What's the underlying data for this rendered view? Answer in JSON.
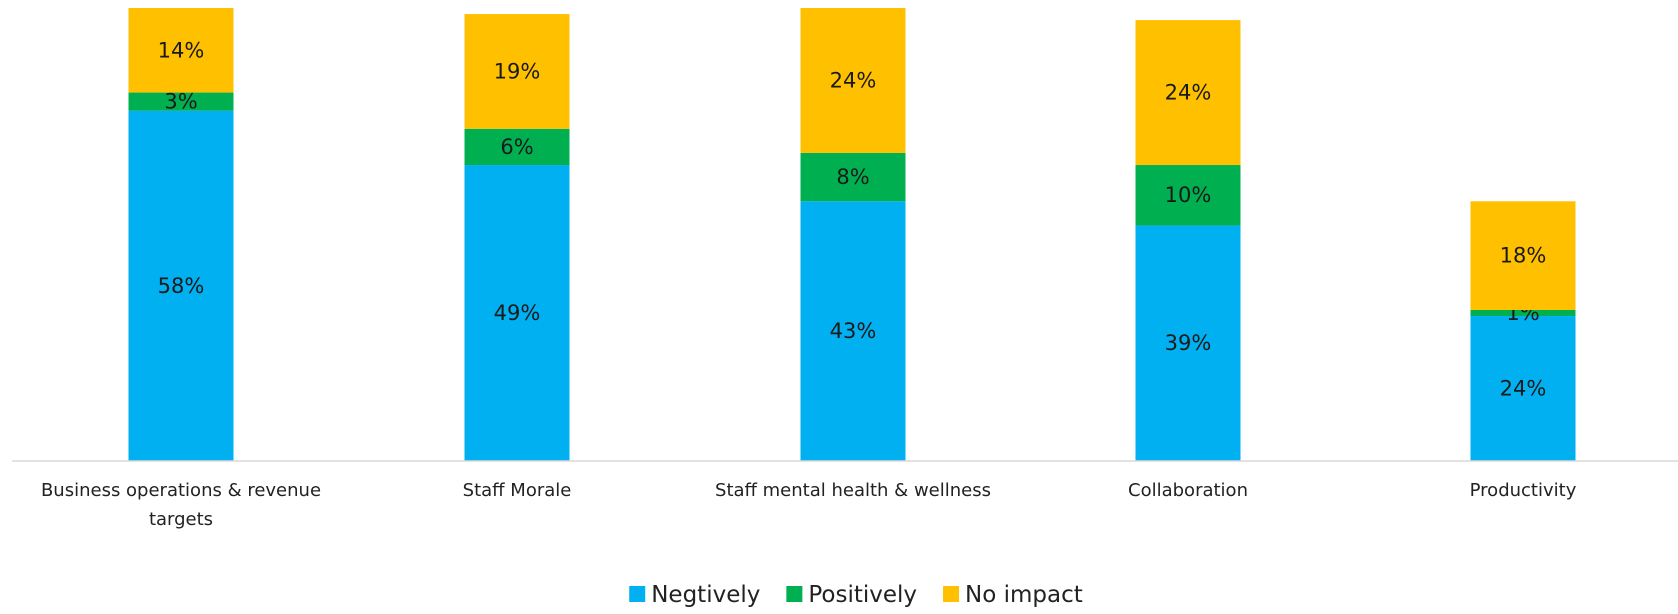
{
  "chart_data": {
    "type": "bar",
    "stacked": true,
    "categories": [
      "Business operations & revenue targets",
      "Staff Morale",
      "Staff mental health & wellness",
      "Collaboration",
      "Productivity"
    ],
    "series": [
      {
        "name": "Negtively",
        "color": "#00B0F0",
        "values": [
          58,
          49,
          43,
          39,
          24
        ],
        "labels": [
          "58%",
          "49%",
          "43%",
          "39%",
          "24%"
        ]
      },
      {
        "name": "Positively",
        "color": "#00B050",
        "values": [
          3,
          6,
          8,
          10,
          1
        ],
        "labels": [
          "3%",
          "6%",
          "8%",
          "10%",
          "1%"
        ]
      },
      {
        "name": "No impact",
        "color": "#FFC000",
        "values": [
          14,
          19,
          24,
          24,
          18
        ],
        "labels": [
          "14%",
          "19%",
          "24%",
          "24%",
          "18%"
        ]
      }
    ],
    "ylim": [
      0,
      75
    ],
    "grid": false,
    "legend_position": "bottom",
    "xlabel": "",
    "ylabel": "",
    "title": ""
  }
}
